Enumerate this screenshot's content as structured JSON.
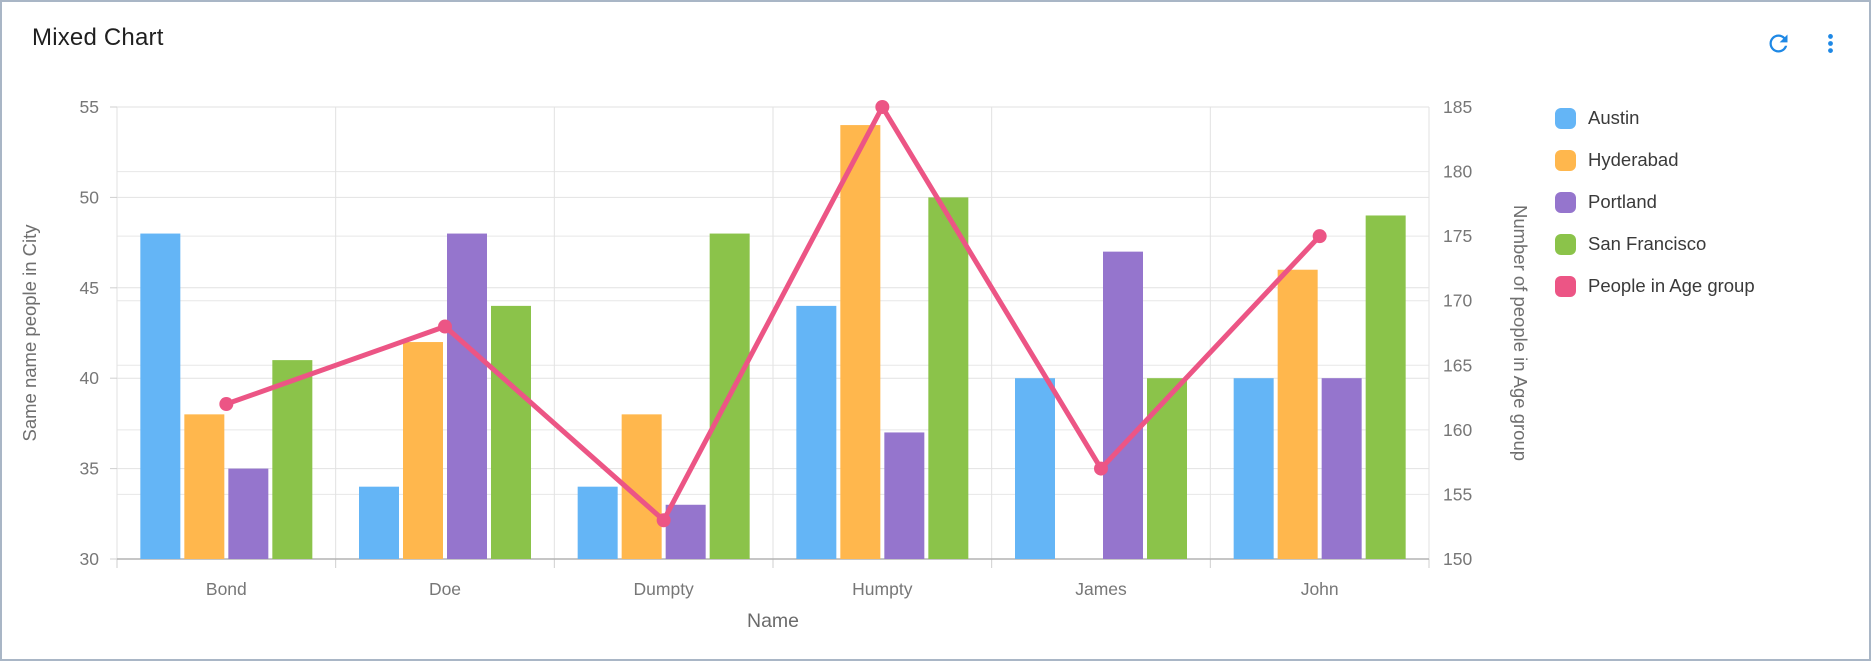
{
  "header": {
    "title": "Mixed Chart"
  },
  "toolbar": {
    "refresh_icon": "refresh",
    "menu_icon": "more-options",
    "icon_color": "#1E88E5"
  },
  "chart_data": {
    "type": "mixed-bar-line",
    "categories": [
      "Bond",
      "Doe",
      "Dumpty",
      "Humpty",
      "James",
      "John"
    ],
    "series": [
      {
        "name": "Austin",
        "type": "bar",
        "axis": "left",
        "color": "#64B5F6",
        "values": [
          48,
          34,
          34,
          44,
          40,
          40
        ]
      },
      {
        "name": "Hyderabad",
        "type": "bar",
        "axis": "left",
        "color": "#FFB74D",
        "values": [
          38,
          42,
          38,
          54,
          null,
          46
        ]
      },
      {
        "name": "Portland",
        "type": "bar",
        "axis": "left",
        "color": "#9575CD",
        "values": [
          35,
          48,
          33,
          37,
          47,
          40
        ]
      },
      {
        "name": "San Francisco",
        "type": "bar",
        "axis": "left",
        "color": "#8BC34A",
        "values": [
          41,
          44,
          48,
          50,
          40,
          49
        ]
      },
      {
        "name": "People in Age group",
        "type": "line",
        "axis": "right",
        "color": "#EC5585",
        "values": [
          162,
          168,
          153,
          185,
          157,
          175
        ]
      }
    ],
    "xlabel": "Name",
    "left_axis": {
      "label": "Same name people in City",
      "min": 30,
      "max": 55,
      "tick_step": 5,
      "ticks": [
        30,
        35,
        40,
        45,
        50,
        55
      ]
    },
    "right_axis": {
      "label": "Number of people in Age group",
      "min": 150,
      "max": 185,
      "tick_step": 5,
      "ticks": [
        150,
        155,
        160,
        165,
        170,
        175,
        180,
        185
      ]
    },
    "legend_position": "right",
    "grid": true
  }
}
